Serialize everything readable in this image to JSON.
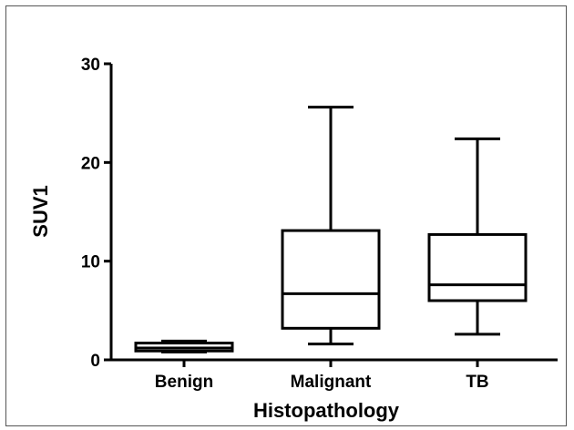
{
  "chart_data": {
    "type": "box",
    "title": "",
    "xlabel": "Histopathology",
    "ylabel": "SUV1",
    "ylim": [
      0,
      30
    ],
    "yticks": [
      0,
      10,
      20,
      30
    ],
    "categories": [
      "Benign",
      "Malignant",
      "TB"
    ],
    "boxes": [
      {
        "category": "Benign",
        "min": 0.8,
        "q1": 0.9,
        "median": 1.2,
        "q3": 1.7,
        "max": 1.9
      },
      {
        "category": "Malignant",
        "min": 1.6,
        "q1": 3.2,
        "median": 6.7,
        "q3": 13.1,
        "max": 25.6
      },
      {
        "category": "TB",
        "min": 2.6,
        "q1": 6.0,
        "median": 7.6,
        "q3": 12.7,
        "max": 22.4
      }
    ],
    "grid": false,
    "legend": "none",
    "colors": {
      "stroke": "#000000",
      "background": "#ffffff"
    }
  }
}
